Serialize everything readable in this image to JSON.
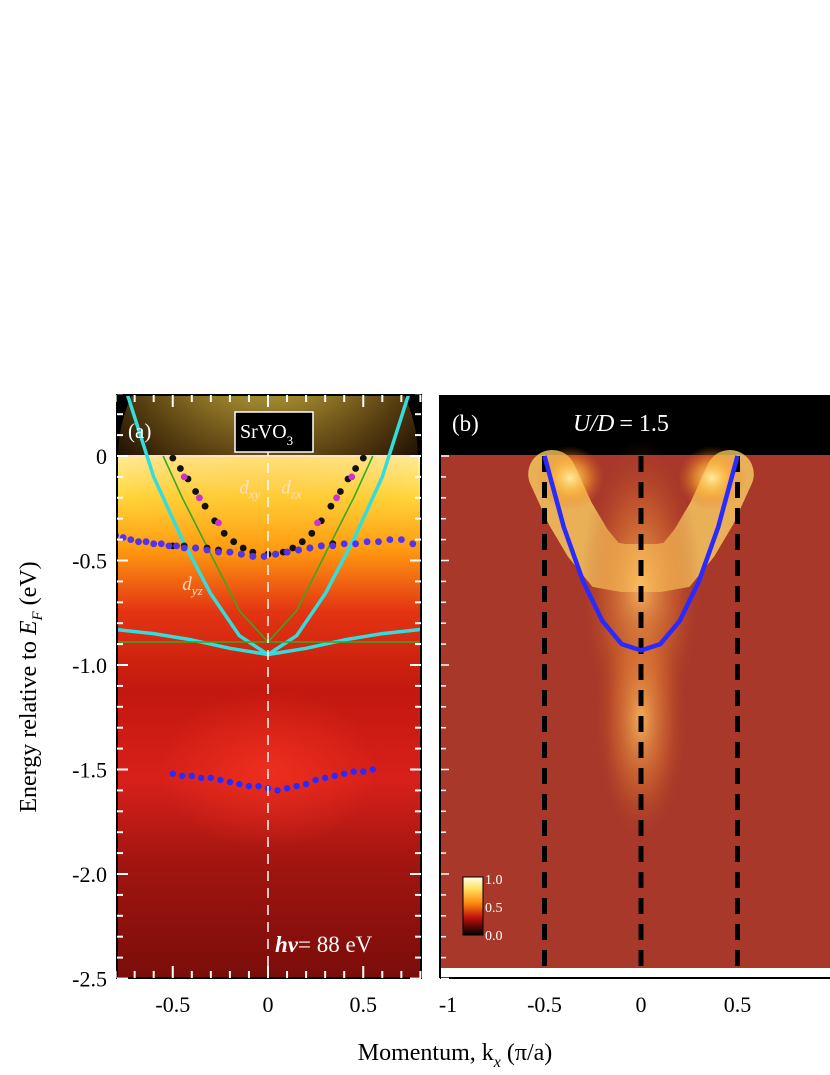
{
  "colors": {
    "background": "#ffffff",
    "frame": "#000000",
    "cyan_band": "#33dddd",
    "green_band": "#33aa22",
    "blue_band": "#2a2aff",
    "black_dots": "#111111",
    "violet_dots": "#5533ee",
    "magenta_dots": "#cc33cc",
    "dashed_line": "#000000",
    "center_line_a": "#ffffff"
  },
  "chart_data": [
    {
      "type": "heatmap",
      "panel_label": "(a)",
      "title": "SrVO3",
      "title_main": "SrVO",
      "title_sub": "3",
      "annotation_photon": "hν = 88 eV",
      "photon_symbol": "hν",
      "photon_value": "= 88 eV",
      "orbital_labels": [
        {
          "text": "d",
          "sub": "xy",
          "x": -0.15,
          "y": -0.18
        },
        {
          "text": "d",
          "sub": "zx",
          "x": 0.07,
          "y": -0.18
        },
        {
          "text": "d",
          "sub": "yz",
          "x": -0.45,
          "y": -0.64
        }
      ],
      "ylabel": "Energy relative to E_F (eV)",
      "ylabel_main": "Energy relative to ",
      "ylabel_var": "E",
      "ylabel_sub": "F",
      "ylabel_unit": " (eV)",
      "xlim": [
        -0.8,
        0.8
      ],
      "ylim": [
        -2.5,
        0.3
      ],
      "xticks": [
        -0.5,
        0,
        0.5
      ],
      "xtick_labels": [
        "-0.5",
        "0",
        "0.5"
      ],
      "yticks": [
        0,
        -0.5,
        -1.0,
        -1.5,
        -2.0,
        -2.5
      ],
      "ytick_labels": [
        "0",
        "-0.5",
        "-1.0",
        "-1.5",
        "-2.0",
        "-2.5"
      ],
      "colormap": "hot",
      "series": [
        {
          "name": "cyan parabola (wide)",
          "kind": "line",
          "color": "cyan",
          "x": [
            -0.74,
            -0.6,
            -0.45,
            -0.3,
            -0.15,
            0,
            0.15,
            0.3,
            0.45,
            0.6,
            0.74
          ],
          "y": [
            0.3,
            -0.1,
            -0.4,
            -0.66,
            -0.86,
            -0.95,
            -0.86,
            -0.66,
            -0.4,
            -0.1,
            0.3
          ]
        },
        {
          "name": "cyan flat band",
          "kind": "line",
          "color": "cyan",
          "x": [
            -0.8,
            -0.6,
            -0.4,
            -0.2,
            0,
            0.2,
            0.4,
            0.6,
            0.8
          ],
          "y": [
            -0.83,
            -0.85,
            -0.88,
            -0.92,
            -0.95,
            -0.92,
            -0.88,
            -0.85,
            -0.83
          ]
        },
        {
          "name": "green parabola",
          "kind": "line",
          "color": "green",
          "x": [
            -0.55,
            -0.45,
            -0.3,
            -0.15,
            0,
            0.15,
            0.3,
            0.45,
            0.55
          ],
          "y": [
            0.0,
            -0.2,
            -0.47,
            -0.74,
            -0.89,
            -0.74,
            -0.47,
            -0.2,
            0.0
          ]
        },
        {
          "name": "green flat band",
          "kind": "line",
          "color": "green",
          "x": [
            -0.8,
            0.8
          ],
          "y": [
            -0.89,
            -0.89
          ]
        },
        {
          "name": "black MDC peaks",
          "kind": "scatter",
          "color": "black",
          "x": [
            -0.5,
            -0.46,
            -0.42,
            -0.38,
            -0.33,
            -0.28,
            -0.23,
            -0.18,
            -0.13,
            -0.08,
            0,
            0.08,
            0.13,
            0.18,
            0.23,
            0.28,
            0.33,
            0.38,
            0.42,
            0.46,
            0.5
          ],
          "y": [
            -0.01,
            -0.06,
            -0.11,
            -0.17,
            -0.24,
            -0.31,
            -0.37,
            -0.41,
            -0.44,
            -0.46,
            -0.47,
            -0.46,
            -0.44,
            -0.41,
            -0.37,
            -0.31,
            -0.24,
            -0.17,
            -0.11,
            -0.06,
            -0.01
          ]
        },
        {
          "name": "magenta MDC peaks",
          "kind": "scatter",
          "color": "magenta",
          "x": [
            -0.44,
            -0.36,
            -0.26,
            0.26,
            0.36,
            0.44
          ],
          "y": [
            -0.1,
            -0.2,
            -0.32,
            -0.32,
            -0.2,
            -0.1
          ]
        },
        {
          "name": "black EDC dashed band",
          "kind": "scatter",
          "color": "black",
          "x": [
            -0.5,
            -0.44,
            -0.38,
            -0.32,
            -0.26,
            -0.2,
            -0.14,
            -0.08,
            -0.02,
            0.04,
            0.1,
            0.16,
            0.22,
            0.28,
            0.34
          ],
          "y": [
            -0.43,
            -0.43,
            -0.44,
            -0.44,
            -0.45,
            -0.46,
            -0.47,
            -0.48,
            -0.48,
            -0.47,
            -0.46,
            -0.45,
            -0.44,
            -0.43,
            -0.42
          ]
        },
        {
          "name": "violet EDC peaks (upper)",
          "kind": "scatter",
          "color": "violet",
          "x": [
            -0.8,
            -0.76,
            -0.72,
            -0.68,
            -0.64,
            -0.6,
            -0.56,
            -0.52,
            -0.48,
            -0.44,
            -0.38,
            -0.32,
            -0.26,
            -0.2,
            -0.14,
            -0.08,
            -0.02,
            0.04,
            0.1,
            0.16,
            0.22,
            0.28,
            0.34,
            0.4,
            0.46,
            0.52,
            0.58,
            0.64,
            0.7,
            0.76
          ],
          "y": [
            -0.38,
            -0.39,
            -0.4,
            -0.41,
            -0.41,
            -0.42,
            -0.42,
            -0.43,
            -0.43,
            -0.44,
            -0.44,
            -0.45,
            -0.46,
            -0.46,
            -0.47,
            -0.48,
            -0.48,
            -0.47,
            -0.46,
            -0.45,
            -0.44,
            -0.43,
            -0.43,
            -0.42,
            -0.42,
            -0.41,
            -0.41,
            -0.4,
            -0.4,
            -0.42
          ]
        },
        {
          "name": "blue incoherent peaks",
          "kind": "scatter",
          "color": "blue",
          "x": [
            -0.5,
            -0.45,
            -0.4,
            -0.35,
            -0.3,
            -0.25,
            -0.2,
            -0.15,
            -0.1,
            -0.05,
            0,
            0.05,
            0.1,
            0.15,
            0.2,
            0.25,
            0.3,
            0.35,
            0.4,
            0.45,
            0.5,
            0.55
          ],
          "y": [
            -1.52,
            -1.53,
            -1.53,
            -1.54,
            -1.54,
            -1.55,
            -1.56,
            -1.57,
            -1.58,
            -1.58,
            -1.59,
            -1.6,
            -1.59,
            -1.58,
            -1.57,
            -1.55,
            -1.54,
            -1.53,
            -1.52,
            -1.51,
            -1.51,
            -1.5
          ]
        }
      ]
    },
    {
      "type": "heatmap",
      "panel_label": "(b)",
      "title": "U/D = 1.5",
      "title_var": "U/D",
      "title_value": "= 1.5",
      "xlabel": "Momentum, k_x (π/a)",
      "xlabel_main": "Momentum, k",
      "xlabel_sub": "x",
      "xlabel_unit": " (π/a)",
      "xlim": [
        -1,
        0.95
      ],
      "ylim": [
        -2.5,
        0.3
      ],
      "xticks": [
        -1,
        -0.5,
        0,
        0.5
      ],
      "xtick_labels": [
        "-1",
        "-0.5",
        "0",
        "0.5"
      ],
      "colormap": "hot",
      "colorbar": {
        "min": 0.0,
        "max": 1.0,
        "tick_labels": [
          "1.0",
          "0.5",
          "0.0"
        ]
      },
      "vertical_dashed_lines_x": [
        -0.5,
        0,
        0.5
      ],
      "series": [
        {
          "name": "quasiparticle band",
          "kind": "line",
          "color": "blue",
          "x": [
            -0.5,
            -0.4,
            -0.3,
            -0.2,
            -0.1,
            0,
            0.1,
            0.2,
            0.3,
            0.4,
            0.5
          ],
          "y": [
            0.0,
            -0.34,
            -0.6,
            -0.79,
            -0.9,
            -0.93,
            -0.9,
            -0.79,
            -0.6,
            -0.34,
            0.0
          ]
        }
      ]
    }
  ]
}
